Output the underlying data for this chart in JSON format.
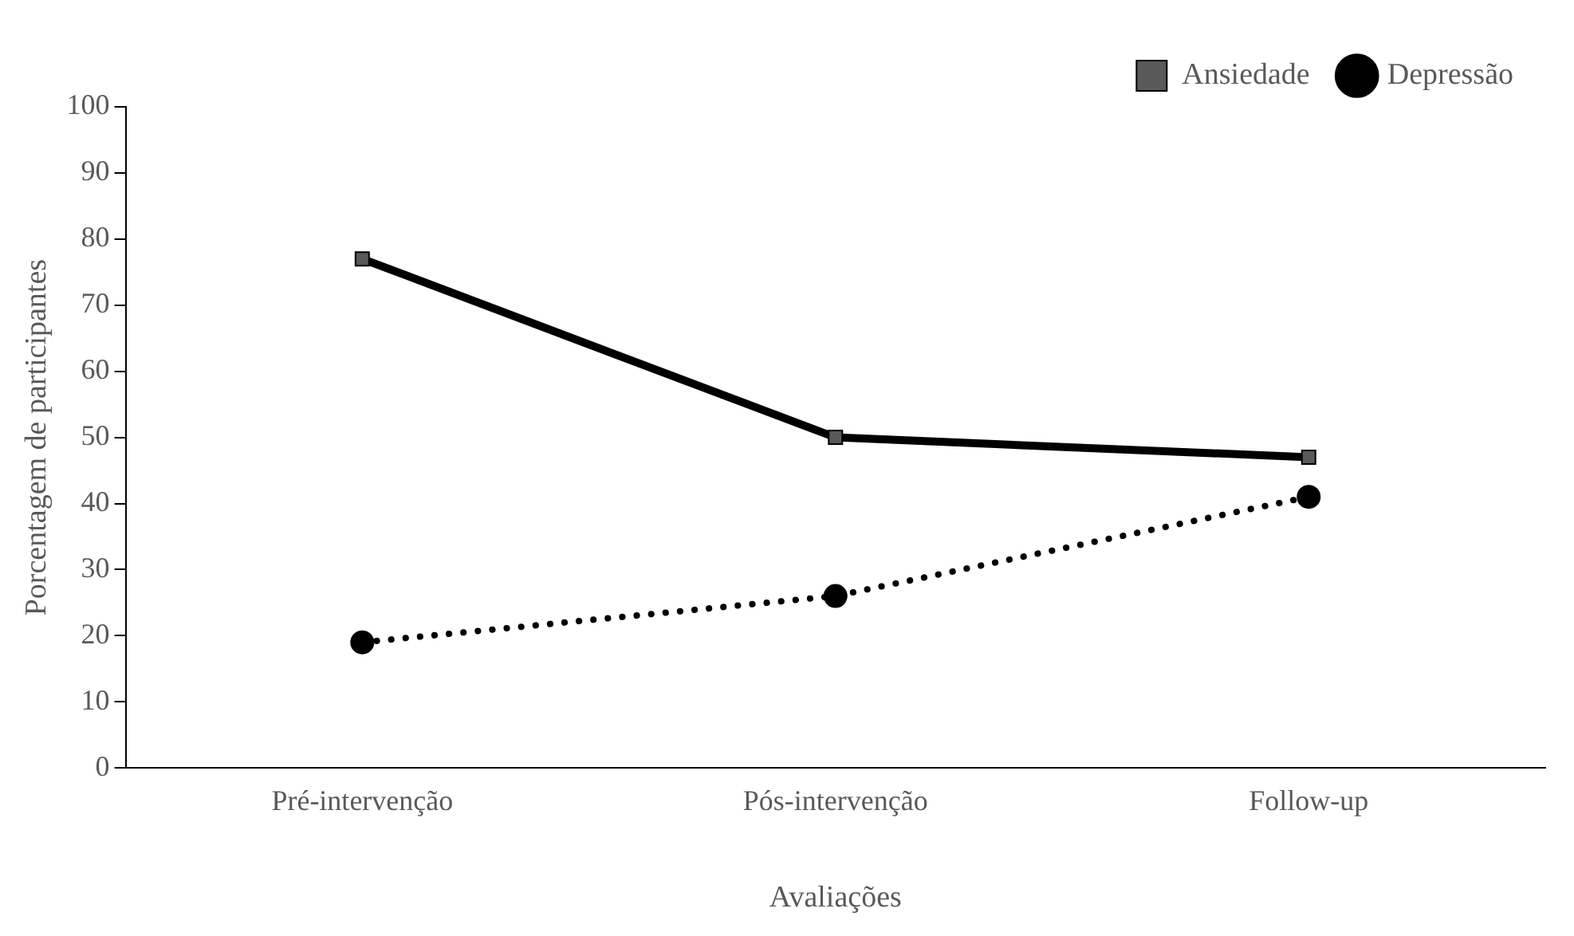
{
  "chart_data": {
    "type": "line",
    "xlabel": "Avaliações",
    "ylabel": "Porcentagem de participantes",
    "categories": [
      "Pré-intervenção",
      "Pós-intervenção",
      "Follow-up"
    ],
    "series": [
      {
        "name": "Ansiedade",
        "color": "#000000",
        "values": [
          77,
          50,
          47
        ],
        "marker": "square",
        "line_style": "solid"
      },
      {
        "name": "Depressão",
        "color": "#000000",
        "values": [
          19,
          26,
          41
        ],
        "marker": "circle",
        "line_style": "dotted"
      }
    ],
    "ylim": [
      0,
      100
    ],
    "yticks": [
      0,
      10,
      20,
      30,
      40,
      50,
      60,
      70,
      80,
      90,
      100
    ],
    "grid": false,
    "legend": "top right"
  }
}
